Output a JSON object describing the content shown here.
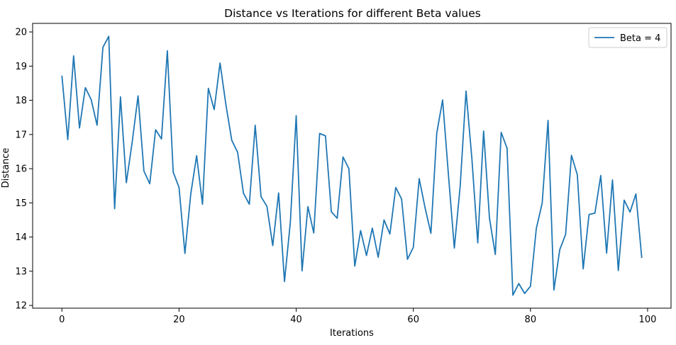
{
  "chart_data": {
    "type": "line",
    "title": "Distance vs Iterations for different Beta values",
    "xlabel": "Iterations",
    "ylabel": "Distance",
    "xlim": [
      -5,
      104
    ],
    "ylim": [
      11.92,
      20.25
    ],
    "xticks": [
      0,
      20,
      40,
      60,
      80,
      100
    ],
    "yticks": [
      12,
      13,
      14,
      15,
      16,
      17,
      18,
      19,
      20
    ],
    "grid": false,
    "legend": "top-right",
    "series": [
      {
        "name": "Beta = 4",
        "color": "#1f77b4",
        "x": [
          0,
          1,
          2,
          3,
          4,
          5,
          6,
          7,
          8,
          9,
          10,
          11,
          12,
          13,
          14,
          15,
          16,
          17,
          18,
          19,
          20,
          21,
          22,
          23,
          24,
          25,
          26,
          27,
          28,
          29,
          30,
          31,
          32,
          33,
          34,
          35,
          36,
          37,
          38,
          39,
          40,
          41,
          42,
          43,
          44,
          45,
          46,
          47,
          48,
          49,
          50,
          51,
          52,
          53,
          54,
          55,
          56,
          57,
          58,
          59,
          60,
          61,
          62,
          63,
          64,
          65,
          66,
          67,
          68,
          69,
          70,
          71,
          72,
          73,
          74,
          75,
          76,
          77,
          78,
          79,
          80,
          81,
          82,
          83,
          84,
          85,
          86,
          87,
          88,
          89,
          90,
          91,
          92,
          93,
          94,
          95,
          96,
          97,
          98,
          99
        ],
        "values": [
          18.72,
          16.85,
          19.3,
          17.19,
          18.37,
          18.02,
          17.27,
          19.55,
          19.87,
          14.83,
          18.1,
          15.59,
          16.78,
          18.13,
          15.93,
          15.56,
          17.14,
          16.87,
          19.45,
          15.9,
          15.45,
          13.52,
          15.26,
          16.38,
          14.96,
          18.35,
          17.73,
          19.09,
          17.87,
          16.83,
          16.48,
          15.28,
          14.96,
          17.27,
          15.18,
          14.9,
          13.75,
          15.29,
          12.7,
          14.43,
          17.55,
          13.01,
          14.89,
          14.12,
          17.03,
          16.96,
          14.74,
          14.55,
          16.34,
          16.0,
          13.15,
          14.19,
          13.46,
          14.26,
          13.41,
          14.5,
          14.09,
          15.45,
          15.11,
          13.35,
          13.7,
          15.71,
          14.86,
          14.11,
          17.04,
          18.01,
          15.81,
          13.68,
          15.49,
          18.27,
          16.29,
          13.83,
          17.1,
          14.55,
          13.49,
          17.06,
          16.6,
          12.3,
          12.64,
          12.35,
          12.56,
          14.25,
          14.99,
          17.41,
          12.45,
          13.63,
          14.08,
          16.39,
          15.82,
          13.07,
          14.66,
          14.7,
          15.8,
          13.53,
          15.67,
          13.02,
          15.08,
          14.73,
          15.26,
          13.39
        ]
      }
    ]
  }
}
